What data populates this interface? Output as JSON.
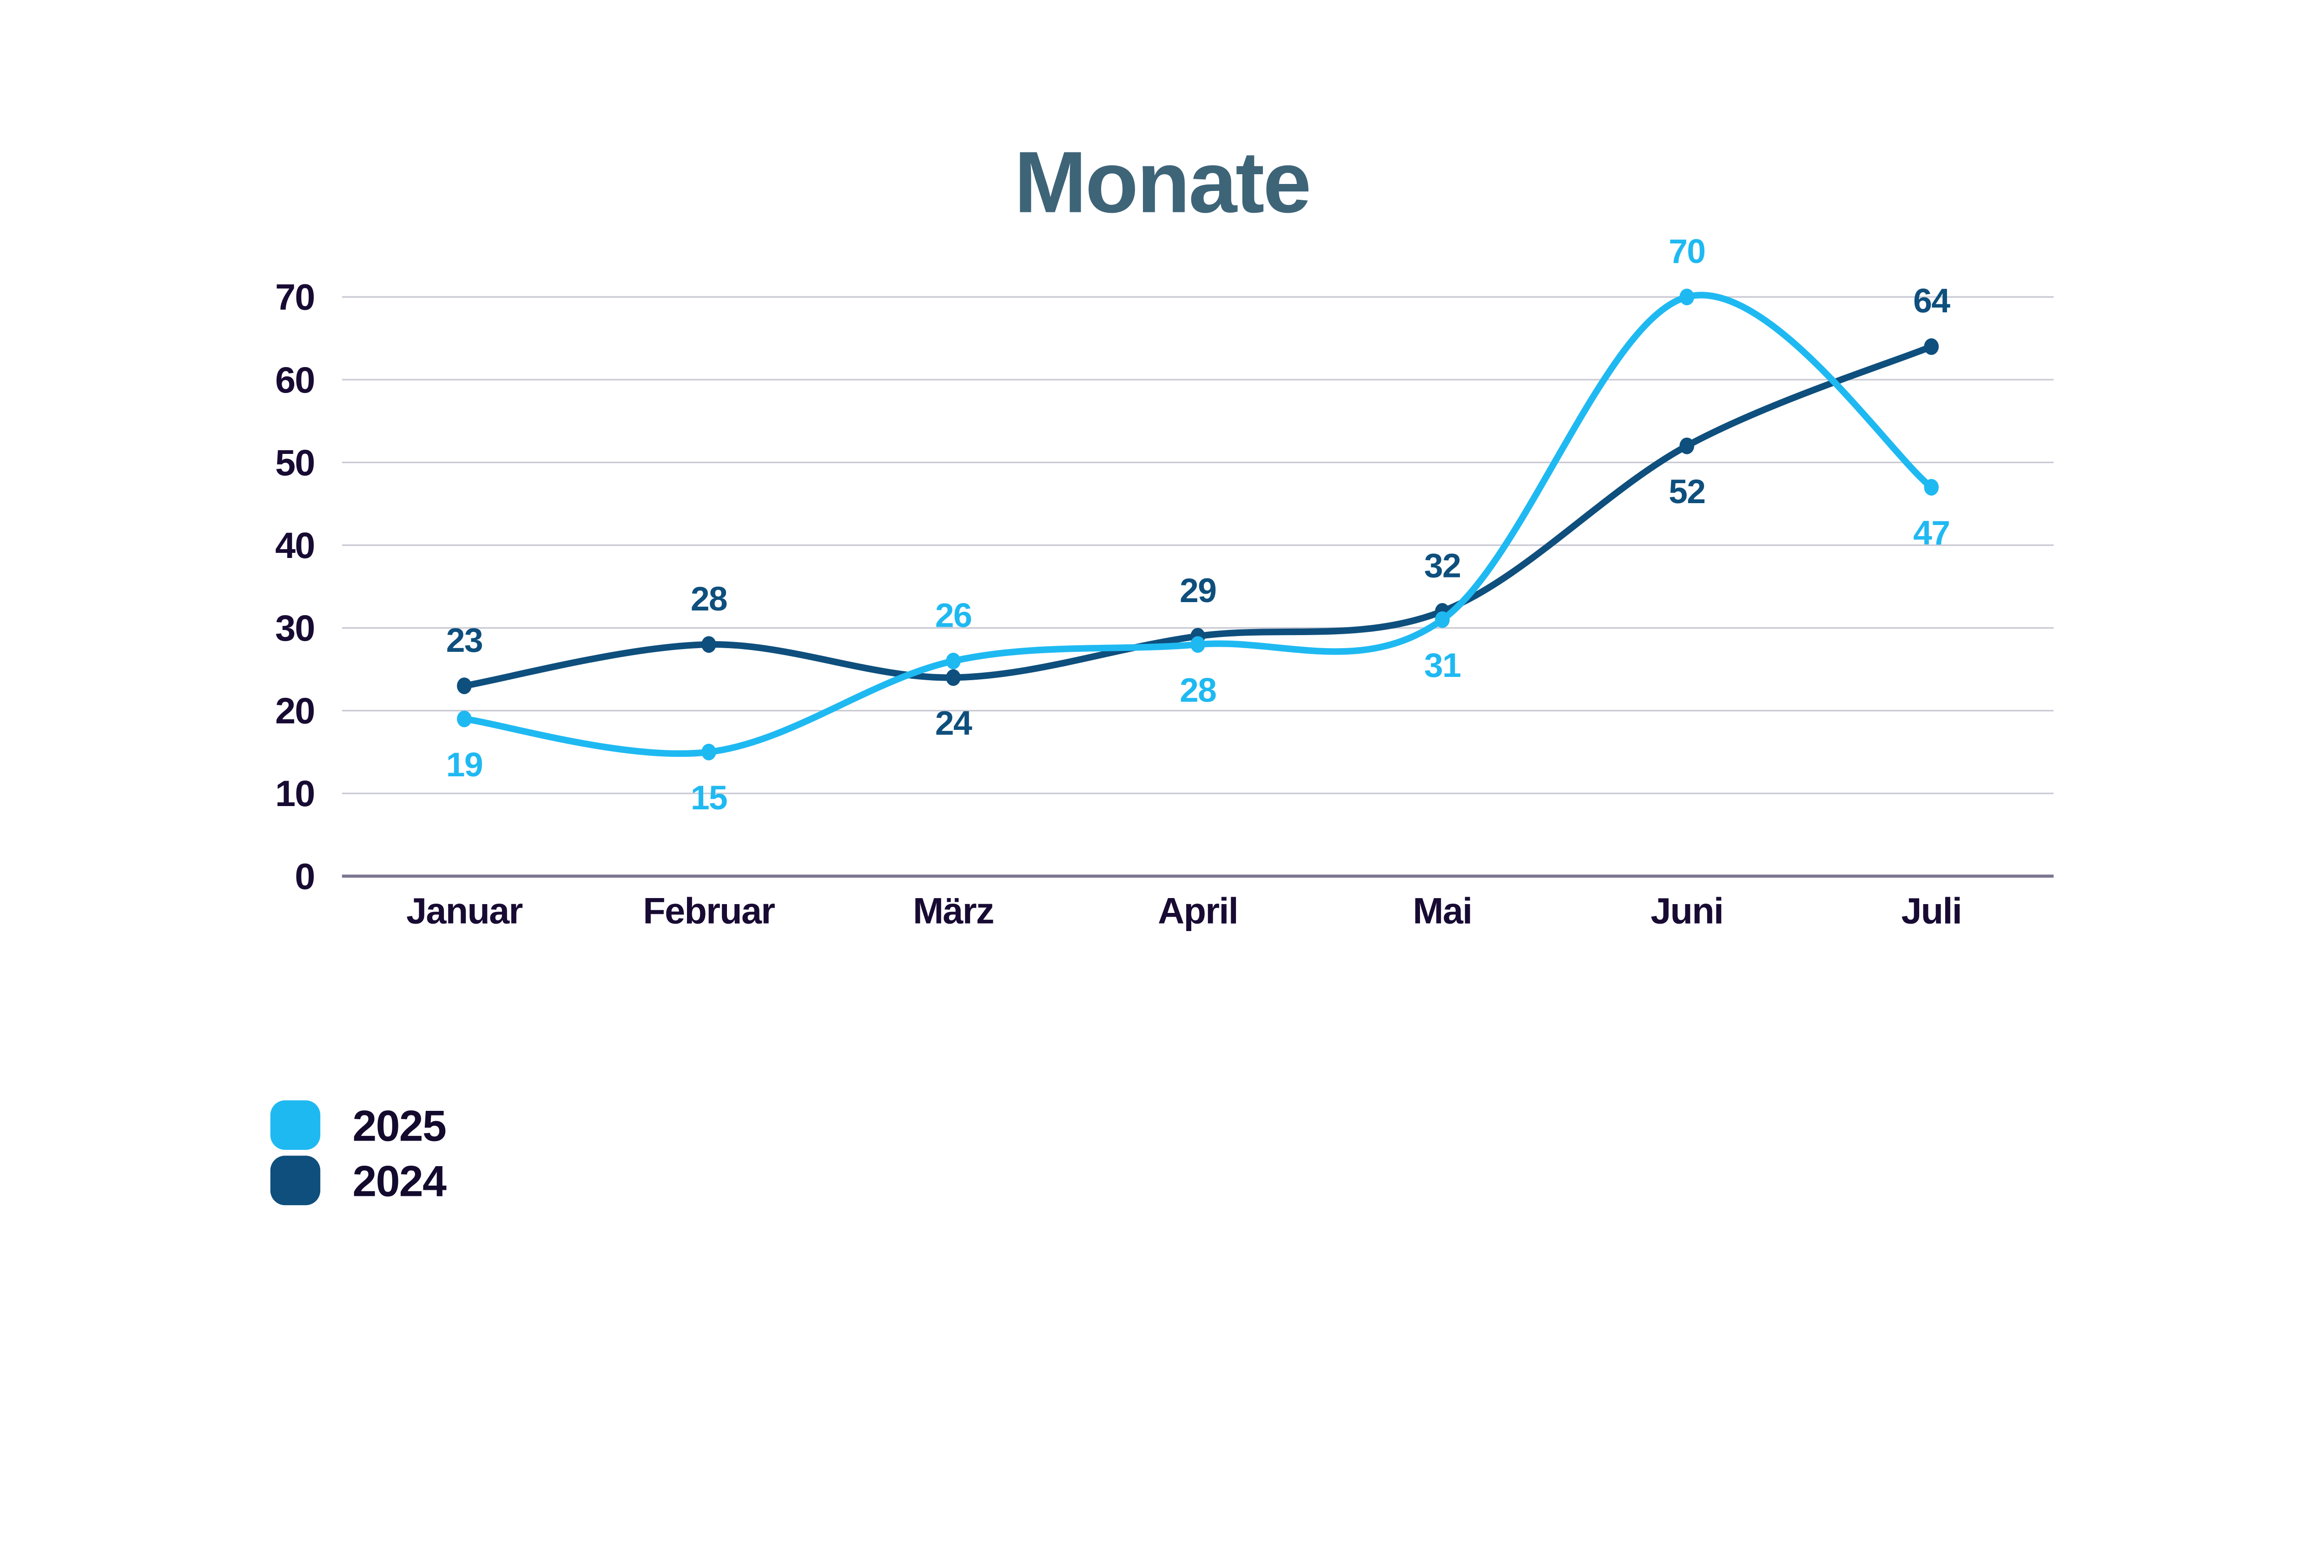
{
  "title": "Monate",
  "colors": {
    "background": "#ffffff",
    "title_text": "#3e6478",
    "axis_tick_text": "#180b33",
    "gridline": "#c9cad4",
    "axis_line": "#7b7590",
    "legend_text": "#140a2e",
    "series_2025": "#1fb9f2",
    "series_2024": "#0e4f7d"
  },
  "chart_data": {
    "type": "line",
    "title": "Monate",
    "categories": [
      "Januar",
      "Februar",
      "März",
      "April",
      "Mai",
      "Juni",
      "Juli"
    ],
    "series": [
      {
        "name": "2025",
        "color": "#1fb9f2",
        "values": [
          19,
          15,
          26,
          28,
          31,
          70,
          47
        ],
        "label_placement": [
          "below",
          "below",
          "above",
          "below",
          "below",
          "above",
          "below"
        ]
      },
      {
        "name": "2024",
        "color": "#0e4f7d",
        "values": [
          23,
          28,
          24,
          29,
          32,
          52,
          64
        ],
        "label_placement": [
          "above",
          "above",
          "below",
          "above",
          "above",
          "below",
          "above"
        ]
      }
    ],
    "ylim": [
      0,
      70
    ],
    "yticks": [
      0,
      10,
      20,
      30,
      40,
      50,
      60,
      70
    ],
    "grid": true,
    "smooth": true,
    "show_point_labels": true,
    "legend_position": "bottom-left",
    "legend_order": [
      "2025",
      "2024"
    ]
  }
}
